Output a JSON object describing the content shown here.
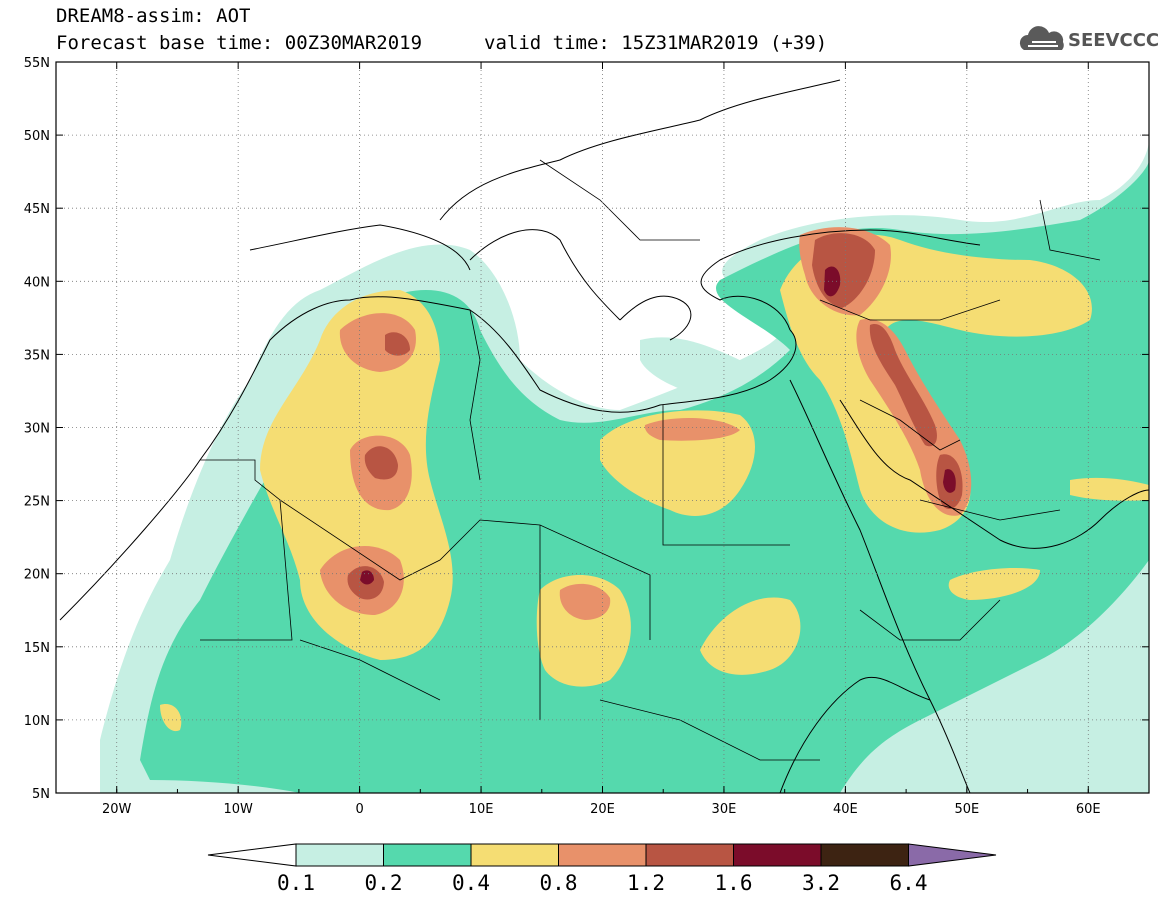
{
  "header": {
    "model_title": "DREAM8-assim: AOT",
    "base_time": "Forecast base time: 00Z30MAR2019",
    "valid_time": "valid time: 15Z31MAR2019 (+39)"
  },
  "logo": {
    "text": "SEEVCCC",
    "icon": "cloud-icon"
  },
  "map": {
    "lon_range": [
      -25,
      65
    ],
    "lat_range": [
      5,
      55
    ],
    "lat_ticks": [
      "55N",
      "50N",
      "45N",
      "40N",
      "35N",
      "30N",
      "25N",
      "20N",
      "15N",
      "10N",
      "5N"
    ],
    "lon_ticks": [
      "20W",
      "10W",
      "0",
      "10E",
      "20E",
      "30E",
      "40E",
      "50E",
      "60E"
    ]
  },
  "colorbar": {
    "labels": [
      "0.1",
      "0.2",
      "0.4",
      "0.8",
      "1.2",
      "1.6",
      "3.2",
      "6.4"
    ],
    "colors": [
      "#c6efe3",
      "#55d9ad",
      "#f5dd73",
      "#e8916a",
      "#b85543",
      "#7b0c2a",
      "#3d2312",
      "#8a6aa8"
    ]
  }
}
